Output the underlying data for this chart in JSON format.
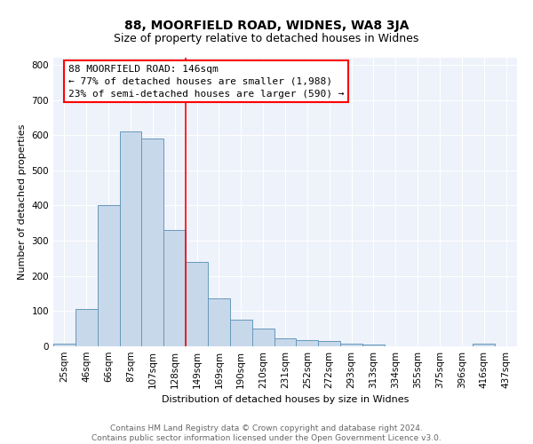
{
  "title": "88, MOORFIELD ROAD, WIDNES, WA8 3JA",
  "subtitle": "Size of property relative to detached houses in Widnes",
  "xlabel": "Distribution of detached houses by size in Widnes",
  "ylabel": "Number of detached properties",
  "bar_color": "#c8d8eb",
  "bar_edge_color": "#6699bb",
  "background_color": "#eef2fa",
  "grid_color": "#ffffff",
  "categories": [
    "25sqm",
    "46sqm",
    "66sqm",
    "87sqm",
    "107sqm",
    "128sqm",
    "149sqm",
    "169sqm",
    "190sqm",
    "210sqm",
    "231sqm",
    "252sqm",
    "272sqm",
    "293sqm",
    "313sqm",
    "334sqm",
    "355sqm",
    "375sqm",
    "396sqm",
    "416sqm",
    "437sqm"
  ],
  "values": [
    8,
    105,
    400,
    610,
    590,
    330,
    240,
    135,
    75,
    50,
    23,
    18,
    15,
    7,
    5,
    0,
    0,
    0,
    0,
    8,
    0
  ],
  "ylim": [
    0,
    820
  ],
  "yticks": [
    0,
    100,
    200,
    300,
    400,
    500,
    600,
    700,
    800
  ],
  "property_line_x": 5.5,
  "annotation_text_line1": "88 MOORFIELD ROAD: 146sqm",
  "annotation_text_line2": "← 77% of detached houses are smaller (1,988)",
  "annotation_text_line3": "23% of semi-detached houses are larger (590) →",
  "footer_text": "Contains HM Land Registry data © Crown copyright and database right 2024.\nContains public sector information licensed under the Open Government Licence v3.0.",
  "title_fontsize": 10,
  "subtitle_fontsize": 9,
  "axis_label_fontsize": 8,
  "tick_fontsize": 7.5,
  "annotation_fontsize": 8,
  "footer_fontsize": 6.5
}
